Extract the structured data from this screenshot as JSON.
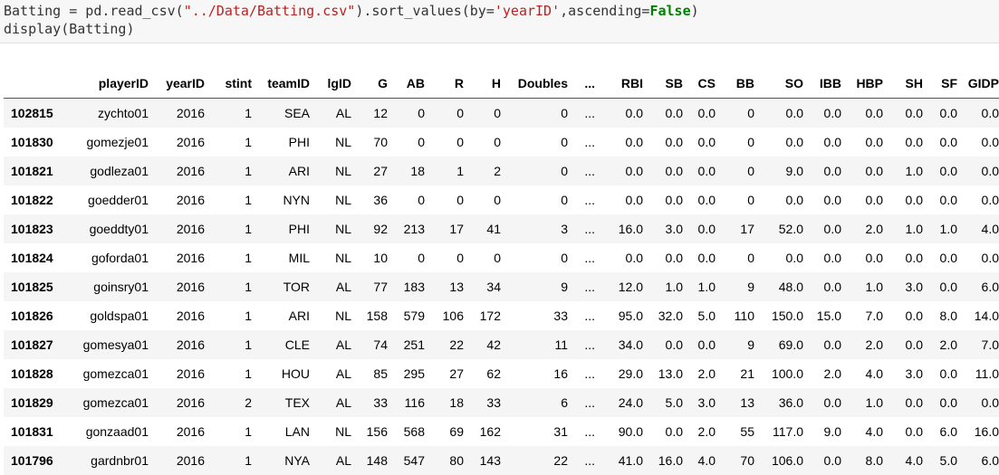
{
  "code": {
    "line1_a": "Batting = pd.read_csv(",
    "line1_str1": "\"../Data/Batting.csv\"",
    "line1_b": ").sort_values(by=",
    "line1_str2": "'yearID'",
    "line1_c": ",ascending=",
    "line1_kw": "False",
    "line1_d": ")",
    "line2": "display(Batting)"
  },
  "table": {
    "columns": [
      "",
      "playerID",
      "yearID",
      "stint",
      "teamID",
      "lgID",
      "G",
      "AB",
      "R",
      "H",
      "Doubles",
      "...",
      "RBI",
      "SB",
      "CS",
      "BB",
      "SO",
      "IBB",
      "HBP",
      "SH",
      "SF",
      "GIDP"
    ],
    "rows": [
      [
        "102815",
        "zychto01",
        "2016",
        "1",
        "SEA",
        "AL",
        "12",
        "0",
        "0",
        "0",
        "0",
        "...",
        "0.0",
        "0.0",
        "0.0",
        "0",
        "0.0",
        "0.0",
        "0.0",
        "0.0",
        "0.0",
        "0.0"
      ],
      [
        "101830",
        "gomezje01",
        "2016",
        "1",
        "PHI",
        "NL",
        "70",
        "0",
        "0",
        "0",
        "0",
        "...",
        "0.0",
        "0.0",
        "0.0",
        "0",
        "0.0",
        "0.0",
        "0.0",
        "0.0",
        "0.0",
        "0.0"
      ],
      [
        "101821",
        "godleza01",
        "2016",
        "1",
        "ARI",
        "NL",
        "27",
        "18",
        "1",
        "2",
        "0",
        "...",
        "0.0",
        "0.0",
        "0.0",
        "0",
        "9.0",
        "0.0",
        "0.0",
        "1.0",
        "0.0",
        "0.0"
      ],
      [
        "101822",
        "goedder01",
        "2016",
        "1",
        "NYN",
        "NL",
        "36",
        "0",
        "0",
        "0",
        "0",
        "...",
        "0.0",
        "0.0",
        "0.0",
        "0",
        "0.0",
        "0.0",
        "0.0",
        "0.0",
        "0.0",
        "0.0"
      ],
      [
        "101823",
        "goeddty01",
        "2016",
        "1",
        "PHI",
        "NL",
        "92",
        "213",
        "17",
        "41",
        "3",
        "...",
        "16.0",
        "3.0",
        "0.0",
        "17",
        "52.0",
        "0.0",
        "2.0",
        "1.0",
        "1.0",
        "4.0"
      ],
      [
        "101824",
        "goforda01",
        "2016",
        "1",
        "MIL",
        "NL",
        "10",
        "0",
        "0",
        "0",
        "0",
        "...",
        "0.0",
        "0.0",
        "0.0",
        "0",
        "0.0",
        "0.0",
        "0.0",
        "0.0",
        "0.0",
        "0.0"
      ],
      [
        "101825",
        "goinsry01",
        "2016",
        "1",
        "TOR",
        "AL",
        "77",
        "183",
        "13",
        "34",
        "9",
        "...",
        "12.0",
        "1.0",
        "1.0",
        "9",
        "48.0",
        "0.0",
        "1.0",
        "3.0",
        "0.0",
        "6.0"
      ],
      [
        "101826",
        "goldspa01",
        "2016",
        "1",
        "ARI",
        "NL",
        "158",
        "579",
        "106",
        "172",
        "33",
        "...",
        "95.0",
        "32.0",
        "5.0",
        "110",
        "150.0",
        "15.0",
        "7.0",
        "0.0",
        "8.0",
        "14.0"
      ],
      [
        "101827",
        "gomesya01",
        "2016",
        "1",
        "CLE",
        "AL",
        "74",
        "251",
        "22",
        "42",
        "11",
        "...",
        "34.0",
        "0.0",
        "0.0",
        "9",
        "69.0",
        "0.0",
        "2.0",
        "0.0",
        "2.0",
        "7.0"
      ],
      [
        "101828",
        "gomezca01",
        "2016",
        "1",
        "HOU",
        "AL",
        "85",
        "295",
        "27",
        "62",
        "16",
        "...",
        "29.0",
        "13.0",
        "2.0",
        "21",
        "100.0",
        "2.0",
        "4.0",
        "3.0",
        "0.0",
        "11.0"
      ],
      [
        "101829",
        "gomezca01",
        "2016",
        "2",
        "TEX",
        "AL",
        "33",
        "116",
        "18",
        "33",
        "6",
        "...",
        "24.0",
        "5.0",
        "3.0",
        "13",
        "36.0",
        "0.0",
        "1.0",
        "0.0",
        "0.0",
        "0.0"
      ],
      [
        "101831",
        "gonzaad01",
        "2016",
        "1",
        "LAN",
        "NL",
        "156",
        "568",
        "69",
        "162",
        "31",
        "...",
        "90.0",
        "0.0",
        "2.0",
        "55",
        "117.0",
        "9.0",
        "4.0",
        "0.0",
        "6.0",
        "16.0"
      ],
      [
        "101796",
        "gardnbr01",
        "2016",
        "1",
        "NYA",
        "AL",
        "148",
        "547",
        "80",
        "143",
        "22",
        "...",
        "41.0",
        "16.0",
        "4.0",
        "70",
        "106.0",
        "0.0",
        "8.0",
        "4.0",
        "5.0",
        "6.0"
      ]
    ]
  }
}
